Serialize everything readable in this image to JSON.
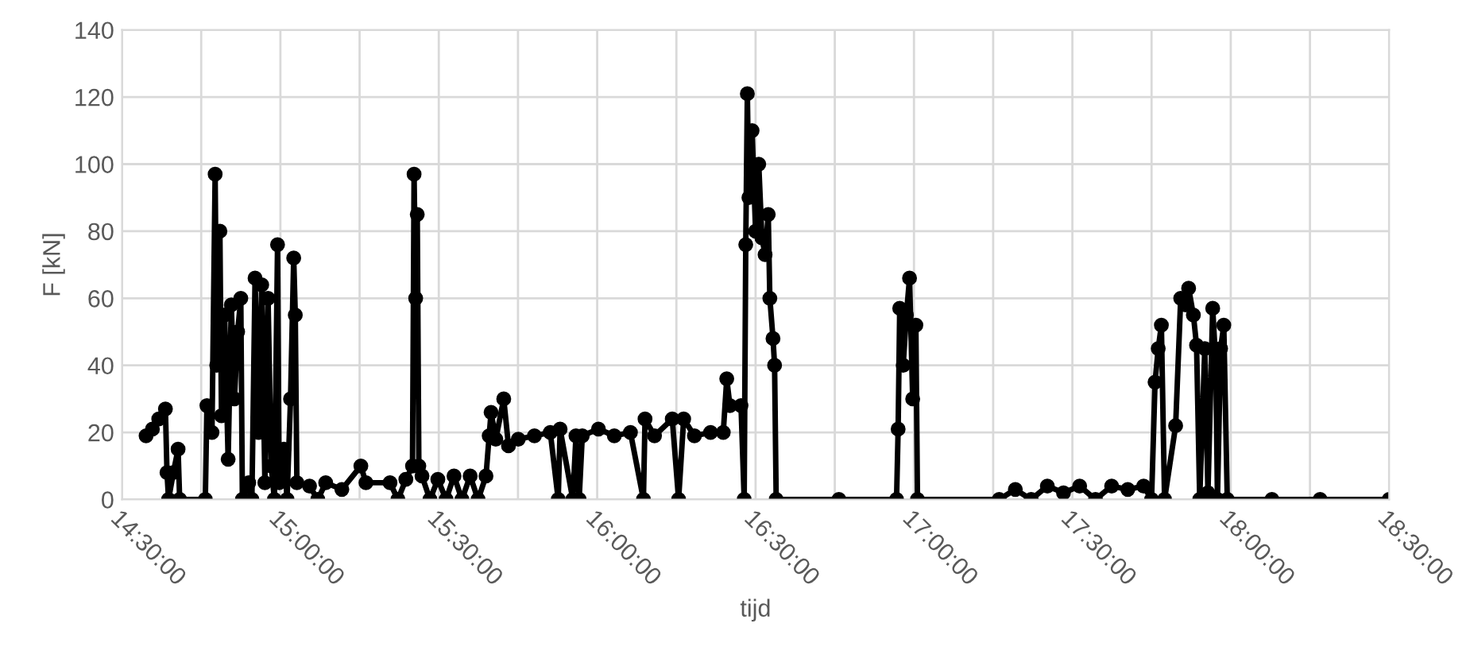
{
  "chart_data": {
    "type": "line",
    "xlabel": "tijd",
    "ylabel": "F [kN]",
    "x": [
      14.576,
      14.596,
      14.616,
      14.637,
      14.642,
      14.647,
      14.662,
      14.677,
      14.682,
      14.763,
      14.768,
      14.784,
      14.794,
      14.799,
      14.809,
      14.814,
      14.824,
      14.835,
      14.845,
      14.855,
      14.865,
      14.875,
      14.88,
      14.9,
      14.91,
      14.92,
      14.931,
      14.941,
      14.951,
      14.961,
      14.971,
      14.981,
      14.991,
      14.996,
      15.011,
      15.021,
      15.032,
      15.042,
      15.047,
      15.052,
      15.092,
      15.118,
      15.143,
      15.194,
      15.254,
      15.27,
      15.346,
      15.371,
      15.396,
      15.417,
      15.422,
      15.427,
      15.432,
      15.437,
      15.447,
      15.472,
      15.497,
      15.523,
      15.548,
      15.573,
      15.599,
      15.624,
      15.649,
      15.659,
      15.665,
      15.68,
      15.705,
      15.72,
      15.751,
      15.802,
      15.852,
      15.877,
      15.883,
      15.923,
      15.933,
      15.943,
      15.953,
      16.004,
      16.054,
      16.105,
      16.146,
      16.151,
      16.181,
      16.237,
      16.257,
      16.273,
      16.307,
      16.358,
      16.398,
      16.409,
      16.419,
      16.454,
      16.464,
      16.469,
      16.474,
      16.479,
      16.489,
      16.5,
      16.51,
      16.52,
      16.53,
      16.54,
      16.545,
      16.555,
      16.56,
      16.565,
      16.763,
      16.945,
      16.95,
      16.955,
      16.966,
      16.976,
      16.986,
      16.996,
      17.006,
      17.011,
      17.269,
      17.32,
      17.37,
      17.421,
      17.472,
      17.523,
      17.573,
      17.624,
      17.675,
      17.725,
      17.75,
      17.761,
      17.771,
      17.781,
      17.791,
      17.826,
      17.842,
      17.857,
      17.867,
      17.882,
      17.892,
      17.902,
      17.918,
      17.928,
      17.943,
      17.953,
      17.958,
      17.968,
      17.978,
      17.989,
      18.13,
      18.282,
      18.5
    ],
    "series": [
      {
        "color": "#000000",
        "values": [
          19,
          21,
          24,
          27,
          8,
          0,
          8,
          15,
          0,
          0,
          28,
          20,
          97,
          40,
          80,
          25,
          55,
          12,
          58,
          30,
          50,
          60,
          0,
          5,
          0,
          66,
          20,
          64,
          5,
          60,
          10,
          0,
          76,
          5,
          15,
          0,
          30,
          72,
          55,
          5,
          4,
          0,
          5,
          3,
          10,
          5,
          5,
          0,
          6,
          10,
          97,
          60,
          85,
          10,
          7,
          0,
          6,
          0,
          7,
          0,
          7,
          0,
          7,
          19,
          26,
          18,
          30,
          16,
          18,
          19,
          20,
          0,
          21,
          0,
          19,
          0,
          19,
          21,
          19,
          20,
          0,
          24,
          19,
          24,
          0,
          24,
          19,
          20,
          20,
          36,
          28,
          28,
          0,
          76,
          121,
          90,
          110,
          80,
          100,
          78,
          73,
          85,
          60,
          48,
          40,
          0,
          0,
          0,
          21,
          57,
          40,
          55,
          66,
          30,
          52,
          0,
          0,
          3,
          0,
          4,
          2,
          4,
          0,
          4,
          3,
          4,
          0,
          35,
          45,
          52,
          0,
          22,
          60,
          58,
          63,
          55,
          46,
          0,
          45,
          2,
          57,
          40,
          0,
          45,
          52,
          0,
          0,
          0,
          0
        ]
      }
    ],
    "xlim": [
      14.5,
      18.5
    ],
    "xticks": [
      {
        "value": 14.5,
        "label": "14:30:00"
      },
      {
        "value": 14.75,
        "label": null
      },
      {
        "value": 15.0,
        "label": "15:00:00"
      },
      {
        "value": 15.25,
        "label": null
      },
      {
        "value": 15.5,
        "label": "15:30:00"
      },
      {
        "value": 15.75,
        "label": null
      },
      {
        "value": 16.0,
        "label": "16:00:00"
      },
      {
        "value": 16.25,
        "label": null
      },
      {
        "value": 16.5,
        "label": "16:30:00"
      },
      {
        "value": 16.75,
        "label": null
      },
      {
        "value": 17.0,
        "label": "17:00:00"
      },
      {
        "value": 17.25,
        "label": null
      },
      {
        "value": 17.5,
        "label": "17:30:00"
      },
      {
        "value": 17.75,
        "label": null
      },
      {
        "value": 18.0,
        "label": "18:00:00"
      },
      {
        "value": 18.25,
        "label": null
      },
      {
        "value": 18.5,
        "label": "18:30:00"
      }
    ],
    "ylim": [
      0,
      140
    ],
    "yticks": [
      0,
      20,
      40,
      60,
      80,
      100,
      120,
      140
    ],
    "grid": true,
    "marker": "circle",
    "line_style": "solid",
    "legend": false
  }
}
